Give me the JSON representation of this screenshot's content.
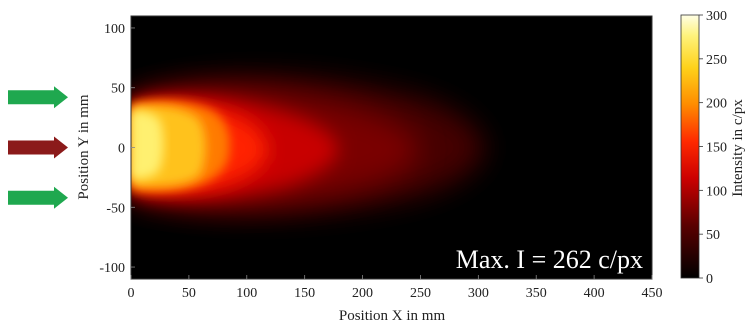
{
  "chart_data": {
    "type": "heatmap",
    "title": "",
    "xlabel": "Position X in mm",
    "ylabel": "Position Y in mm",
    "colorbar_label": "Intensity in c/px",
    "annotation": "Max. I = 262 c/px",
    "xlim": [
      0,
      450
    ],
    "ylim": [
      -110,
      110
    ],
    "clim": [
      0,
      300
    ],
    "x_ticks": [
      0,
      50,
      100,
      150,
      200,
      250,
      300,
      350,
      400,
      450
    ],
    "y_ticks": [
      -100,
      -50,
      0,
      50,
      100
    ],
    "colorbar_ticks": [
      0,
      50,
      100,
      150,
      200,
      250,
      300
    ],
    "max_intensity": 262,
    "colormap": "hot",
    "arrows": [
      {
        "y": 42,
        "color": "#1fa84f"
      },
      {
        "y": 0,
        "color": "#8b1a1a"
      },
      {
        "y": -42,
        "color": "#1fa84f"
      }
    ]
  }
}
